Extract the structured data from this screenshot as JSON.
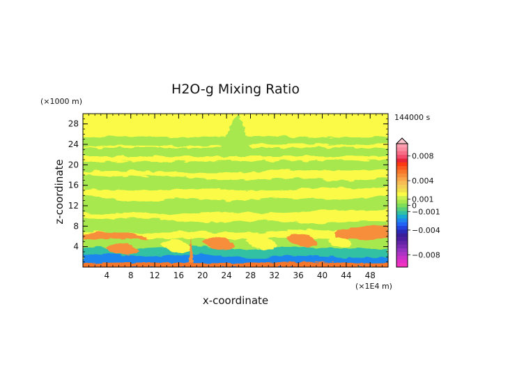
{
  "chart_data": {
    "type": "heatmap",
    "title": "H2O-g Mixing Ratio",
    "xlabel": "x-coordinate",
    "ylabel": "z-coordinate",
    "x_unit": "(×1E4 m)",
    "y_unit": "(×1000 m)",
    "time_label": "144000 s",
    "xlim": [
      0,
      51
    ],
    "ylim": [
      0,
      30
    ],
    "x_ticks": [
      4,
      8,
      12,
      16,
      20,
      24,
      28,
      32,
      36,
      40,
      44,
      48
    ],
    "y_ticks": [
      4,
      8,
      12,
      16,
      20,
      24,
      28
    ],
    "colorbar": {
      "range": [
        -0.01,
        0.01
      ],
      "tick_values": [
        0.008,
        0.004,
        0.001,
        0,
        -0.001,
        -0.004,
        -0.008
      ],
      "tick_labels": [
        "0.008",
        "0.004",
        "0.001",
        "0",
        "−0.001",
        "−0.004",
        "−0.008"
      ],
      "bands": [
        "#fb9fb0",
        "#fa8aa0",
        "#f86d86",
        "#f24b6c",
        "#e6253a",
        "#fc3a12",
        "#fa5a1f",
        "#f8762a",
        "#f78e3b",
        "#f8a649",
        "#f7bc55",
        "#f4cf57",
        "#f0e04c",
        "#fbfb47",
        "#c9f050",
        "#a8e84f",
        "#7fdd5a",
        "#59cf7b",
        "#33c1a2",
        "#19a8d2",
        "#1f86ee",
        "#2264f5",
        "#2443dc",
        "#2b2ab8",
        "#3a1d98",
        "#4b1d9e",
        "#6426a6",
        "#7a2bb2",
        "#9333c0",
        "#ad34c4",
        "#c932c8",
        "#e22fc8",
        "#f233c0"
      ]
    },
    "dominant_fields": [
      {
        "range": "0 to 0.001",
        "color": "#fbfb47",
        "description_region": "background, upper layers"
      },
      {
        "range": "-0.001 to 0",
        "color": "#a8e84f",
        "description_region": "horizontal bands 5-26"
      },
      {
        "range": "0.001 to 0.004",
        "color": "#f78e3b",
        "description_region": "near-surface rolls"
      },
      {
        "range": "-0.004 to -0.001",
        "color": "#1f86ee",
        "description_region": "near-surface rolls"
      }
    ]
  }
}
